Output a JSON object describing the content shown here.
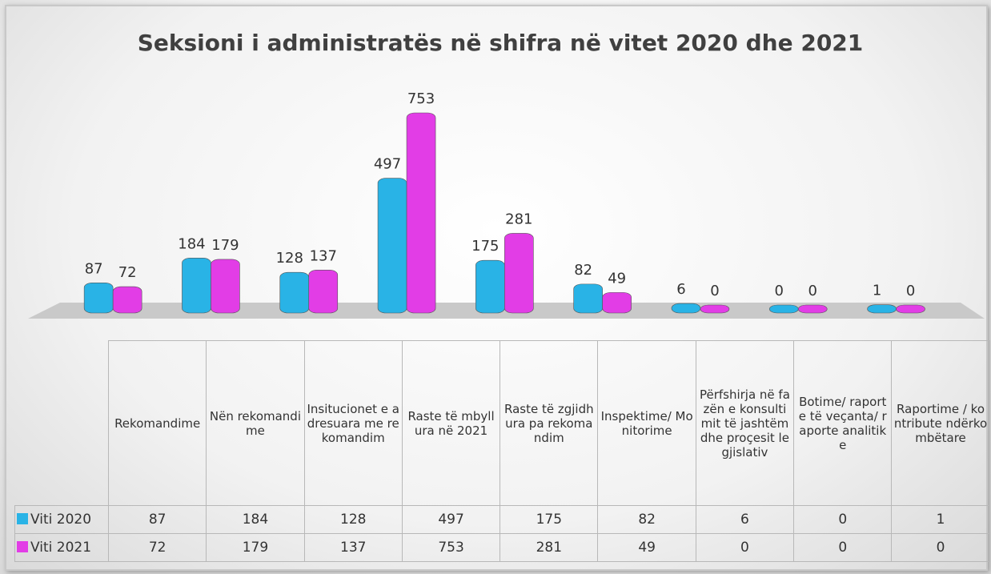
{
  "chart_data": {
    "type": "bar",
    "title": "Seksioni i administratës në shifra në vitet 2020 dhe 2021",
    "categories": [
      "Rekomandime",
      "Nën rekomandime",
      "Insitucionet e adresuara me rekomandim",
      "Raste të mbyllura në 2021",
      "Raste të zgjidhura pa rekomandim",
      "Inspektime/ Monitorime",
      "Përfshirja në fazën e konsultimit të jashtëm dhe proçesit legjislativ",
      "Botime/ raporte të veçanta/ raporte analitike",
      "Raportime / kontribute ndërkombëtare"
    ],
    "series": [
      {
        "name": "Viti 2020",
        "color": "#29b3e6",
        "values": [
          87,
          184,
          128,
          497,
          175,
          82,
          6,
          0,
          1
        ]
      },
      {
        "name": "Viti 2021",
        "color": "#e23de6",
        "values": [
          72,
          179,
          137,
          753,
          281,
          49,
          0,
          0,
          0
        ]
      }
    ]
  }
}
